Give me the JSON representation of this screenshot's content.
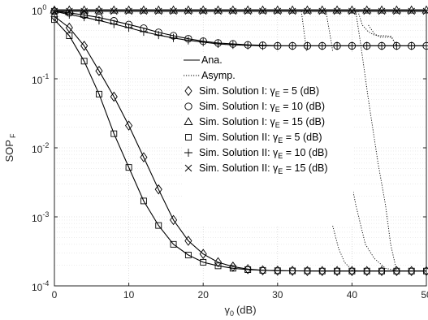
{
  "chart_data": {
    "type": "line",
    "xlabel": {
      "symbol": "γ",
      "subscript": "0",
      "unit": "(dB)"
    },
    "ylabel": {
      "main": "SOP",
      "subscript": "F"
    },
    "xlim": [
      0,
      50
    ],
    "ylim": [
      0.0001,
      1
    ],
    "yscale": "log",
    "grid": "major and minor, dotted",
    "x_ticks": [
      "0",
      "10",
      "20",
      "30",
      "40",
      "50"
    ],
    "y_ticks": [
      {
        "base": "10",
        "exp": "-4",
        "value": 0.0001
      },
      {
        "base": "10",
        "exp": "-3",
        "value": 0.001
      },
      {
        "base": "10",
        "exp": "-2",
        "value": 0.01
      },
      {
        "base": "10",
        "exp": "-1",
        "value": 0.1
      },
      {
        "base": "10",
        "exp": "0",
        "value": 1
      }
    ],
    "legend_position": "center-right",
    "legend": [
      {
        "kind": "line",
        "dash": "solid",
        "label": "Ana."
      },
      {
        "kind": "line",
        "dash": "dotted",
        "label": "Asymp."
      },
      {
        "kind": "marker",
        "marker": "diamond",
        "prefix": "Sim. Solution I: ",
        "sym": "γ",
        "sub": "E",
        "suffix": " = 5 (dB)"
      },
      {
        "kind": "marker",
        "marker": "circle",
        "prefix": "Sim. Solution I: ",
        "sym": "γ",
        "sub": "E",
        "suffix": " = 10 (dB)"
      },
      {
        "kind": "marker",
        "marker": "triangle",
        "prefix": "Sim. Solution I: ",
        "sym": "γ",
        "sub": "E",
        "suffix": " = 15 (dB)"
      },
      {
        "kind": "marker",
        "marker": "square",
        "prefix": "Sim. Solution II: ",
        "sym": "γ",
        "sub": "E",
        "suffix": " = 5 (dB)"
      },
      {
        "kind": "marker",
        "marker": "plus",
        "prefix": "Sim. Solution II: ",
        "sym": "γ",
        "sub": "E",
        "suffix": " = 10 (dB)"
      },
      {
        "kind": "marker",
        "marker": "x",
        "prefix": "Sim. Solution II: ",
        "sym": "γ",
        "sub": "E",
        "suffix": " = 15 (dB)"
      }
    ],
    "series": [
      {
        "style": "solid",
        "x": [
          0,
          2,
          4,
          6,
          8,
          10,
          12,
          14,
          16,
          18,
          20,
          22,
          24,
          26,
          28,
          30,
          32,
          34,
          36,
          38,
          40,
          42,
          44,
          46,
          48,
          50
        ],
        "y": [
          0.72,
          0.42,
          0.18,
          0.06,
          0.016,
          0.0052,
          0.0017,
          0.00075,
          0.0004,
          0.00028,
          0.00022,
          0.000195,
          0.00018,
          0.000172,
          0.000168,
          0.000166,
          0.000165,
          0.000165,
          0.000164,
          0.000164,
          0.000164,
          0.000164,
          0.000164,
          0.000164,
          0.000164,
          0.000164
        ]
      },
      {
        "style": "solid",
        "x": [
          0,
          2,
          4,
          6,
          8,
          10,
          12,
          14,
          16,
          18,
          20,
          22,
          24,
          26,
          28,
          30,
          32,
          34,
          36,
          38,
          40,
          42,
          44,
          46,
          48,
          50
        ],
        "y": [
          0.8,
          0.55,
          0.3,
          0.13,
          0.055,
          0.021,
          0.0073,
          0.0025,
          0.0009,
          0.00045,
          0.00029,
          0.00022,
          0.00019,
          0.000175,
          0.000168,
          0.000166,
          0.000165,
          0.000164,
          0.000164,
          0.000164,
          0.000164,
          0.000164,
          0.000164,
          0.000164,
          0.000164,
          0.000164
        ]
      },
      {
        "style": "solid",
        "x": [
          0,
          2,
          4,
          6,
          8,
          10,
          12,
          14,
          16,
          18,
          20,
          22,
          24,
          26,
          28,
          30,
          32,
          34,
          36,
          38,
          40,
          42,
          44,
          46,
          48,
          50
        ],
        "y": [
          0.95,
          0.9,
          0.84,
          0.77,
          0.69,
          0.61,
          0.54,
          0.47,
          0.42,
          0.38,
          0.35,
          0.33,
          0.32,
          0.31,
          0.305,
          0.3,
          0.3,
          0.3,
          0.3,
          0.3,
          0.3,
          0.3,
          0.3,
          0.3,
          0.3,
          0.3
        ]
      },
      {
        "style": "solid",
        "x": [
          0,
          2,
          4,
          6,
          8,
          10,
          12,
          14,
          16,
          18,
          20,
          22,
          24,
          26,
          28,
          30,
          32,
          34,
          36,
          38,
          40,
          42,
          44,
          46,
          48,
          50
        ],
        "y": [
          0.95,
          0.85,
          0.78,
          0.7,
          0.62,
          0.55,
          0.48,
          0.43,
          0.39,
          0.36,
          0.34,
          0.32,
          0.31,
          0.305,
          0.3,
          0.3,
          0.3,
          0.3,
          0.3,
          0.3,
          0.3,
          0.3,
          0.3,
          0.3,
          0.3,
          0.3
        ]
      },
      {
        "style": "solid",
        "x": [
          0,
          10,
          20,
          30,
          40,
          50
        ],
        "y": [
          0.985,
          0.985,
          0.985,
          0.985,
          0.985,
          0.985
        ]
      },
      {
        "style": "solid",
        "x": [
          0,
          10,
          20,
          30,
          40,
          50
        ],
        "y": [
          0.95,
          0.95,
          0.95,
          0.95,
          0.95,
          0.95
        ]
      },
      {
        "style": "dotted",
        "x": [
          36.5,
          37.3,
          38.2,
          39.2,
          40.5,
          41.8,
          43.0,
          44.5,
          46.2
        ],
        "y": [
          0.95,
          0.3,
          0.05,
          0.008,
          0.0015,
          0.0004,
          0.00025,
          0.00018,
          0.000165
        ]
      },
      {
        "style": "dotted",
        "x": [
          40.5,
          41.2,
          42.2,
          43.5,
          44.5,
          45.2,
          46.0
        ],
        "y": [
          0.95,
          0.3,
          0.05,
          0.006,
          0.0015,
          0.0004,
          0.000165
        ]
      },
      {
        "style": "dotted",
        "x": [
          33.2,
          33.8,
          34.8,
          36.0,
          37.2,
          38.2,
          39.0,
          40.0,
          40.8
        ],
        "y": [
          0.95,
          0.3,
          0.04,
          0.005,
          0.0009,
          0.00035,
          0.00022,
          0.00017,
          0.000165
        ]
      },
      {
        "style": "dotted",
        "x": [
          42.2,
          43.0,
          43.8,
          44.5,
          45.3,
          46.0
        ],
        "y": [
          0.6,
          0.45,
          0.4,
          0.4,
          0.4,
          0.3
        ]
      },
      {
        "style": "dotted",
        "x": [
          40.8,
          41.4,
          42.2,
          43.0,
          43.8,
          44.5,
          45.3,
          46.0
        ],
        "y": [
          0.95,
          0.6,
          0.48,
          0.43,
          0.42,
          0.42,
          0.41,
          0.3
        ]
      },
      {
        "style": "marker",
        "marker": "diamond",
        "x": [
          0,
          2,
          4,
          6,
          8,
          10,
          12,
          14,
          16,
          18,
          20,
          22,
          24,
          26,
          28,
          30,
          32,
          34,
          36,
          38,
          40,
          42,
          44,
          46,
          48,
          50
        ],
        "y": [
          0.8,
          0.55,
          0.3,
          0.13,
          0.055,
          0.021,
          0.0073,
          0.0025,
          0.0009,
          0.00045,
          0.00029,
          0.00022,
          0.00019,
          0.000175,
          0.000168,
          0.000166,
          0.000165,
          0.000164,
          0.000164,
          0.000164,
          0.000164,
          0.000164,
          0.000164,
          0.000164,
          0.000164,
          0.000164
        ]
      },
      {
        "style": "marker",
        "marker": "square",
        "x": [
          0,
          2,
          4,
          6,
          8,
          10,
          12,
          14,
          16,
          18,
          20,
          22,
          24,
          26,
          28,
          30,
          32,
          34,
          36,
          38,
          40,
          42,
          44,
          46,
          48,
          50
        ],
        "y": [
          0.72,
          0.42,
          0.18,
          0.06,
          0.016,
          0.0052,
          0.0017,
          0.00075,
          0.0004,
          0.00028,
          0.00022,
          0.000195,
          0.00018,
          0.000172,
          0.000168,
          0.000166,
          0.000165,
          0.000165,
          0.000164,
          0.000164,
          0.000164,
          0.000164,
          0.000164,
          0.000164,
          0.000164,
          0.000164
        ]
      },
      {
        "style": "marker",
        "marker": "circle",
        "x": [
          0,
          2,
          4,
          6,
          8,
          10,
          12,
          14,
          16,
          18,
          20,
          22,
          24,
          26,
          28,
          30,
          32,
          34,
          36,
          38,
          40,
          42,
          44,
          46,
          48,
          50
        ],
        "y": [
          0.95,
          0.9,
          0.84,
          0.77,
          0.69,
          0.61,
          0.54,
          0.47,
          0.42,
          0.38,
          0.35,
          0.33,
          0.32,
          0.31,
          0.305,
          0.3,
          0.3,
          0.3,
          0.3,
          0.3,
          0.3,
          0.3,
          0.3,
          0.3,
          0.3,
          0.3
        ]
      },
      {
        "style": "marker",
        "marker": "plus",
        "x": [
          0,
          2,
          4,
          6,
          8,
          10,
          12,
          14,
          16,
          18,
          20,
          22,
          24,
          26,
          28,
          30,
          32,
          34,
          36,
          38,
          40,
          42,
          44,
          46,
          48,
          50
        ],
        "y": [
          0.95,
          0.85,
          0.78,
          0.7,
          0.62,
          0.55,
          0.48,
          0.43,
          0.39,
          0.36,
          0.34,
          0.32,
          0.31,
          0.305,
          0.3,
          0.3,
          0.3,
          0.3,
          0.3,
          0.3,
          0.3,
          0.3,
          0.3,
          0.3,
          0.3,
          0.3
        ]
      },
      {
        "style": "marker",
        "marker": "triangle",
        "x": [
          0,
          2,
          4,
          6,
          8,
          10,
          12,
          14,
          16,
          18,
          20,
          22,
          24,
          26,
          28,
          30,
          32,
          34,
          36,
          38,
          40,
          42,
          44,
          46,
          48,
          50
        ],
        "y": [
          0.985,
          0.985,
          0.985,
          0.985,
          0.985,
          0.985,
          0.985,
          0.985,
          0.985,
          0.985,
          0.985,
          0.985,
          0.985,
          0.985,
          0.985,
          0.985,
          0.985,
          0.985,
          0.985,
          0.985,
          0.985,
          0.985,
          0.985,
          0.985,
          0.985,
          0.985
        ]
      },
      {
        "style": "marker",
        "marker": "x",
        "x": [
          0,
          2,
          4,
          6,
          8,
          10,
          12,
          14,
          16,
          18,
          20,
          22,
          24,
          26,
          28,
          30,
          32,
          34,
          36,
          38,
          40,
          42,
          44,
          46,
          48,
          50
        ],
        "y": [
          0.95,
          0.95,
          0.95,
          0.95,
          0.95,
          0.95,
          0.95,
          0.95,
          0.95,
          0.95,
          0.95,
          0.95,
          0.95,
          0.95,
          0.95,
          0.95,
          0.95,
          0.95,
          0.95,
          0.95,
          0.95,
          0.95,
          0.95,
          0.95,
          0.95,
          0.95
        ]
      }
    ]
  }
}
